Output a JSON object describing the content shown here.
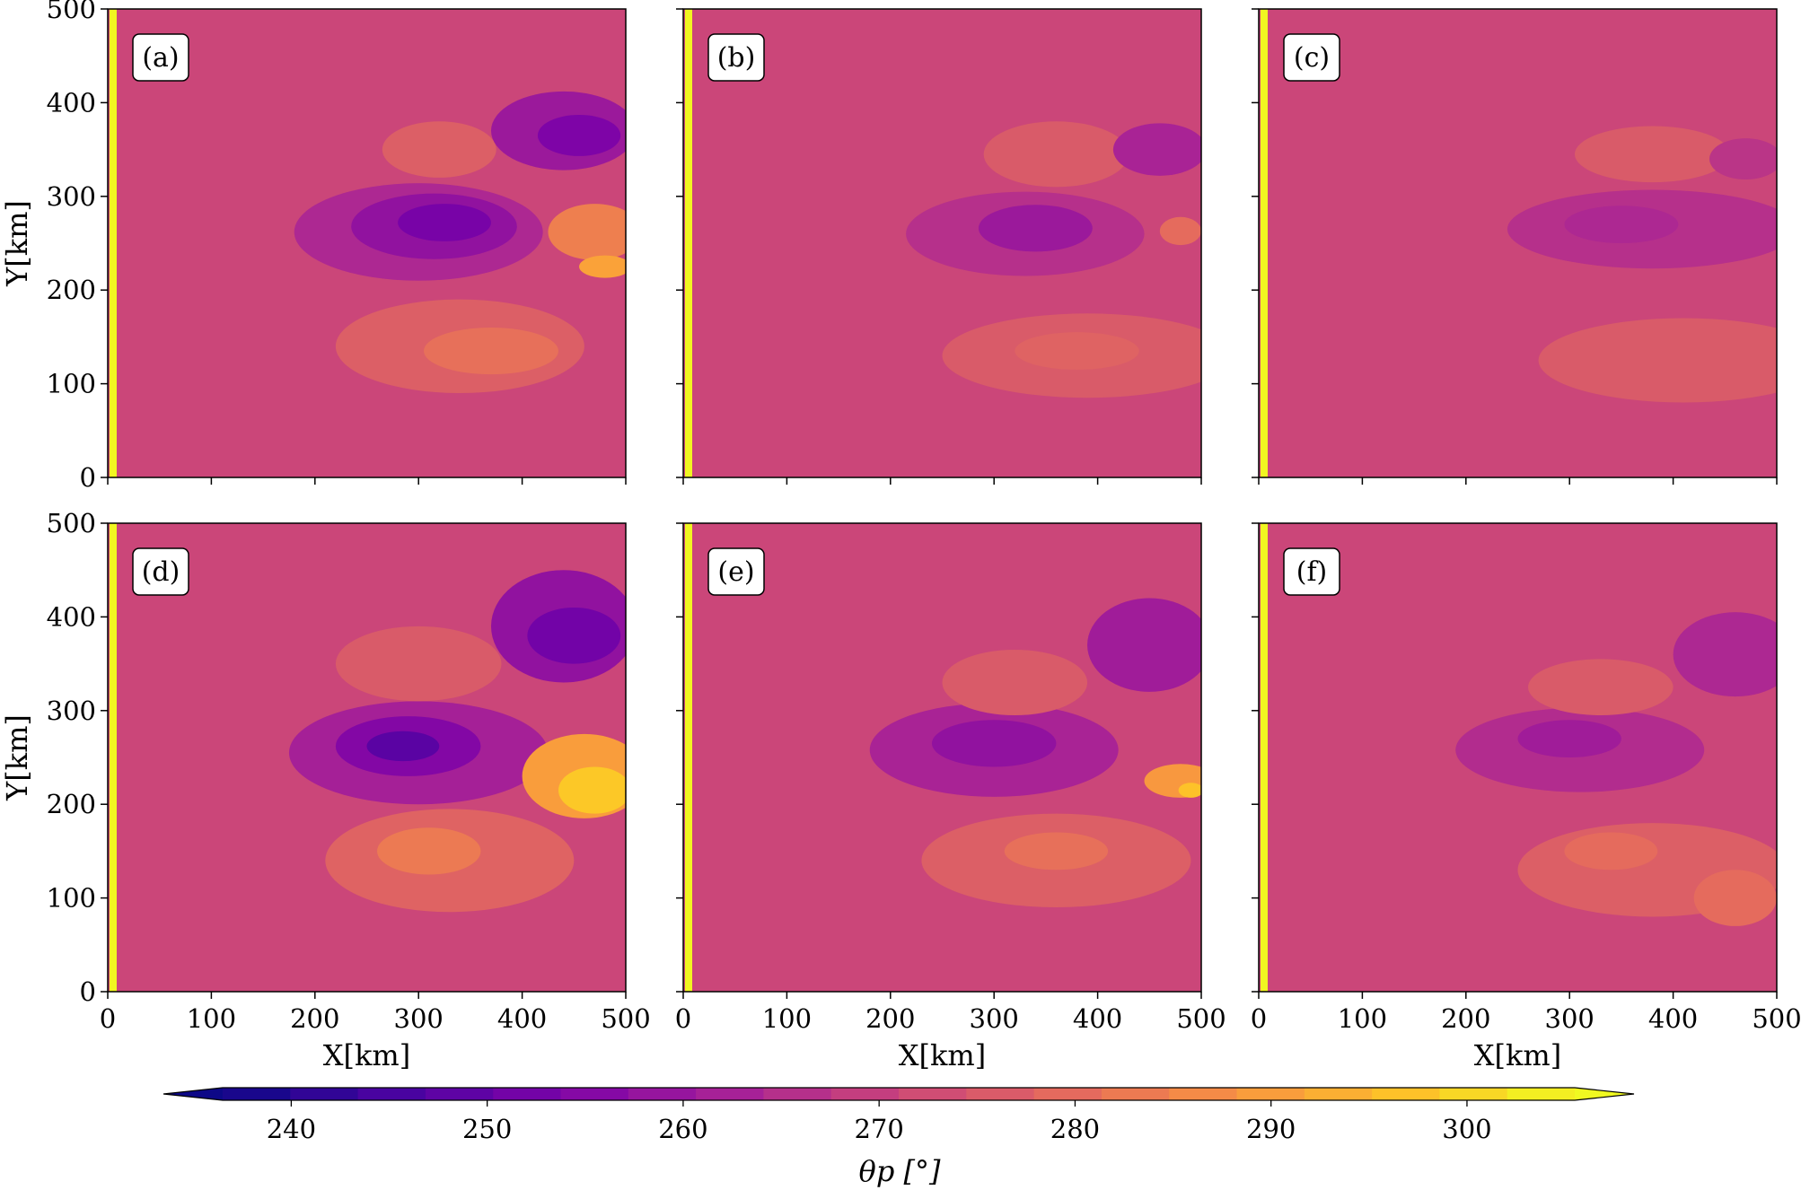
{
  "chart_data": {
    "type": "heatmap",
    "colormap": "plasma",
    "field_background_value": 271,
    "xlim": [
      0,
      500
    ],
    "ylim": [
      0,
      500
    ],
    "xlabel": "X[km]",
    "ylabel": "Y[km]",
    "x_ticks": [
      0,
      100,
      200,
      300,
      400,
      500
    ],
    "y_ticks": [
      0,
      100,
      200,
      300,
      400,
      500
    ],
    "panels": [
      {
        "label": "(a)",
        "features": [
          {
            "x": 300,
            "y": 262,
            "rx": 120,
            "ry": 52,
            "value": 264
          },
          {
            "x": 315,
            "y": 268,
            "rx": 80,
            "ry": 35,
            "value": 258
          },
          {
            "x": 325,
            "y": 272,
            "rx": 45,
            "ry": 20,
            "value": 253
          },
          {
            "x": 340,
            "y": 140,
            "rx": 120,
            "ry": 50,
            "value": 277
          },
          {
            "x": 370,
            "y": 135,
            "rx": 65,
            "ry": 25,
            "value": 281
          },
          {
            "x": 320,
            "y": 350,
            "rx": 55,
            "ry": 30,
            "value": 277
          },
          {
            "x": 440,
            "y": 370,
            "rx": 70,
            "ry": 42,
            "value": 260
          },
          {
            "x": 455,
            "y": 365,
            "rx": 40,
            "ry": 22,
            "value": 254
          },
          {
            "x": 470,
            "y": 262,
            "rx": 45,
            "ry": 30,
            "value": 284
          },
          {
            "x": 480,
            "y": 225,
            "rx": 25,
            "ry": 12,
            "value": 291
          }
        ]
      },
      {
        "label": "(b)",
        "features": [
          {
            "x": 330,
            "y": 260,
            "rx": 115,
            "ry": 45,
            "value": 266
          },
          {
            "x": 340,
            "y": 266,
            "rx": 55,
            "ry": 25,
            "value": 260
          },
          {
            "x": 390,
            "y": 130,
            "rx": 140,
            "ry": 45,
            "value": 276
          },
          {
            "x": 380,
            "y": 135,
            "rx": 60,
            "ry": 20,
            "value": 278
          },
          {
            "x": 360,
            "y": 345,
            "rx": 70,
            "ry": 35,
            "value": 276
          },
          {
            "x": 460,
            "y": 350,
            "rx": 45,
            "ry": 28,
            "value": 263
          },
          {
            "x": 480,
            "y": 263,
            "rx": 20,
            "ry": 15,
            "value": 280
          }
        ]
      },
      {
        "label": "(c)",
        "features": [
          {
            "x": 380,
            "y": 265,
            "rx": 140,
            "ry": 42,
            "value": 266
          },
          {
            "x": 350,
            "y": 270,
            "rx": 55,
            "ry": 20,
            "value": 264
          },
          {
            "x": 410,
            "y": 125,
            "rx": 140,
            "ry": 45,
            "value": 276
          },
          {
            "x": 380,
            "y": 345,
            "rx": 75,
            "ry": 30,
            "value": 276
          },
          {
            "x": 470,
            "y": 340,
            "rx": 35,
            "ry": 22,
            "value": 267
          }
        ]
      },
      {
        "label": "(d)",
        "features": [
          {
            "x": 300,
            "y": 255,
            "rx": 125,
            "ry": 55,
            "value": 262
          },
          {
            "x": 290,
            "y": 262,
            "rx": 70,
            "ry": 32,
            "value": 255
          },
          {
            "x": 285,
            "y": 262,
            "rx": 35,
            "ry": 16,
            "value": 248
          },
          {
            "x": 330,
            "y": 140,
            "rx": 120,
            "ry": 55,
            "value": 278
          },
          {
            "x": 310,
            "y": 150,
            "rx": 50,
            "ry": 25,
            "value": 283
          },
          {
            "x": 300,
            "y": 350,
            "rx": 80,
            "ry": 40,
            "value": 276
          },
          {
            "x": 440,
            "y": 390,
            "rx": 70,
            "ry": 60,
            "value": 258
          },
          {
            "x": 450,
            "y": 380,
            "rx": 45,
            "ry": 30,
            "value": 252
          },
          {
            "x": 460,
            "y": 230,
            "rx": 60,
            "ry": 45,
            "value": 290
          },
          {
            "x": 470,
            "y": 215,
            "rx": 35,
            "ry": 25,
            "value": 298
          }
        ]
      },
      {
        "label": "(e)",
        "features": [
          {
            "x": 300,
            "y": 258,
            "rx": 120,
            "ry": 50,
            "value": 263
          },
          {
            "x": 300,
            "y": 265,
            "rx": 60,
            "ry": 25,
            "value": 258
          },
          {
            "x": 360,
            "y": 140,
            "rx": 130,
            "ry": 50,
            "value": 277
          },
          {
            "x": 360,
            "y": 150,
            "rx": 50,
            "ry": 20,
            "value": 281
          },
          {
            "x": 320,
            "y": 330,
            "rx": 70,
            "ry": 35,
            "value": 276
          },
          {
            "x": 450,
            "y": 370,
            "rx": 60,
            "ry": 50,
            "value": 261
          },
          {
            "x": 480,
            "y": 225,
            "rx": 35,
            "ry": 18,
            "value": 289
          },
          {
            "x": 490,
            "y": 215,
            "rx": 12,
            "ry": 8,
            "value": 297
          }
        ]
      },
      {
        "label": "(f)",
        "features": [
          {
            "x": 310,
            "y": 258,
            "rx": 120,
            "ry": 45,
            "value": 265
          },
          {
            "x": 300,
            "y": 270,
            "rx": 50,
            "ry": 20,
            "value": 261
          },
          {
            "x": 380,
            "y": 130,
            "rx": 130,
            "ry": 50,
            "value": 277
          },
          {
            "x": 340,
            "y": 150,
            "rx": 45,
            "ry": 20,
            "value": 280
          },
          {
            "x": 330,
            "y": 325,
            "rx": 70,
            "ry": 30,
            "value": 276
          },
          {
            "x": 460,
            "y": 360,
            "rx": 60,
            "ry": 45,
            "value": 264
          },
          {
            "x": 460,
            "y": 100,
            "rx": 40,
            "ry": 30,
            "value": 280
          }
        ]
      }
    ],
    "colorbar": {
      "label": "θp [°]",
      "ticks": [
        240,
        250,
        260,
        270,
        280,
        290,
        300
      ],
      "levels": [
        236.5,
        305.5
      ],
      "extend": "both"
    }
  }
}
